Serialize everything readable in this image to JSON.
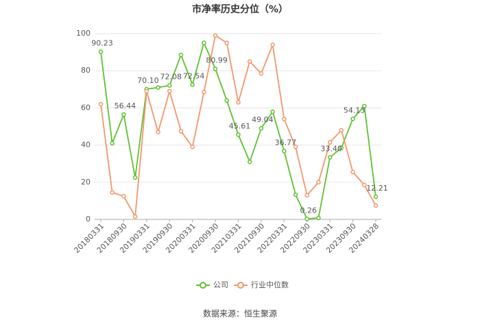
{
  "chart_data": {
    "type": "line",
    "title": "市净率历史分位（%）",
    "categories": [
      "20180331",
      null,
      "20180930",
      null,
      "20190331",
      null,
      "20190930",
      null,
      "20200331",
      null,
      "20200930",
      null,
      "20210331",
      null,
      "20210930",
      null,
      "20220331",
      null,
      "20220930",
      null,
      "20230331",
      null,
      "20230930",
      null,
      "20240328"
    ],
    "series": [
      {
        "name": "公司",
        "color": "#5cc12f",
        "values": [
          90.23,
          41,
          56.44,
          22.5,
          70.1,
          71,
          72.08,
          88.5,
          72.54,
          95,
          80.99,
          64,
          45.61,
          31,
          49.04,
          58,
          36.77,
          13.3,
          0.26,
          0.8,
          33.4,
          38.5,
          54.13,
          61,
          12.21
        ],
        "value_labels": [
          "90.23",
          null,
          "56.44",
          null,
          "70.10",
          null,
          "72.08",
          null,
          "72.54",
          null,
          "80.99",
          null,
          "45.61",
          null,
          "49.04",
          null,
          "36.77",
          null,
          "0.26",
          null,
          "33.40",
          null,
          "54.13",
          null,
          "12.21"
        ]
      },
      {
        "name": "行业中位数",
        "color": "#f4956a",
        "values": [
          62,
          14.5,
          12.5,
          1.5,
          69,
          47,
          69,
          47.5,
          39,
          68.5,
          99,
          95,
          63,
          85,
          78.5,
          94,
          54,
          39,
          13,
          20,
          41.5,
          48,
          25.5,
          18.5,
          7.5
        ]
      }
    ],
    "ylim": [
      0,
      100
    ],
    "yticks": [
      0,
      20,
      40,
      60,
      80,
      100
    ],
    "grid": true,
    "source": "数据来源：恒生聚源"
  }
}
